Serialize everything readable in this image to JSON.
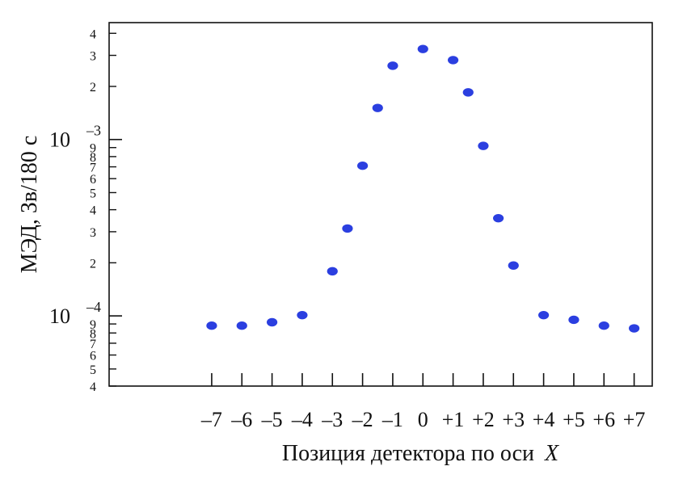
{
  "chart_data": {
    "type": "scatter",
    "title": "",
    "xlabel": "Позиция детектора по оси",
    "xlabel_var": "X",
    "ylabel": "МЭД,  Зв/180 с",
    "yscale": "log",
    "ylim": [
      4e-05,
      0.0046
    ],
    "xlim": [
      -10.4,
      7.6
    ],
    "grid": false,
    "legend": "none",
    "marker_color": "#2b3fe0",
    "x_tick_labels": [
      "–7",
      "–6",
      "–5",
      "–4",
      "–3",
      "–2",
      "–1",
      "0",
      "+1",
      "+2",
      "+3",
      "+4",
      "+5",
      "+6",
      "+7"
    ],
    "y_major_ticks": [
      {
        "base": "10",
        "exp": "–3",
        "value": 0.001
      },
      {
        "base": "10",
        "exp": "–4",
        "value": 0.0001
      }
    ],
    "y_minor_ticks": [
      {
        "label": "4",
        "value": 0.004
      },
      {
        "label": "3",
        "value": 0.003
      },
      {
        "label": "2",
        "value": 0.002
      },
      {
        "label": "9",
        "value": 0.0009
      },
      {
        "label": "8",
        "value": 0.0008
      },
      {
        "label": "7",
        "value": 0.0007
      },
      {
        "label": "6",
        "value": 0.0006
      },
      {
        "label": "5",
        "value": 0.0005
      },
      {
        "label": "4",
        "value": 0.0004
      },
      {
        "label": "3",
        "value": 0.0003
      },
      {
        "label": "2",
        "value": 0.0002
      },
      {
        "label": "9",
        "value": 9e-05
      },
      {
        "label": "8",
        "value": 8e-05
      },
      {
        "label": "7",
        "value": 7e-05
      },
      {
        "label": "6",
        "value": 6e-05
      },
      {
        "label": "5",
        "value": 5e-05
      },
      {
        "label": "4",
        "value": 4e-05
      }
    ],
    "series": [
      {
        "x": [
          -7,
          -6,
          -5,
          -4,
          -3,
          -2.5,
          -2,
          -1.5,
          -1,
          0,
          1,
          1.5,
          2,
          2.5,
          3,
          4,
          5,
          6,
          7
        ],
        "y": [
          8.8e-05,
          8.8e-05,
          9.2e-05,
          0.000101,
          0.000179,
          0.000313,
          0.00071,
          0.00151,
          0.00262,
          0.00326,
          0.00282,
          0.00185,
          0.00092,
          0.000358,
          0.000193,
          0.000101,
          9.5e-05,
          8.8e-05,
          8.5e-05
        ]
      }
    ]
  }
}
